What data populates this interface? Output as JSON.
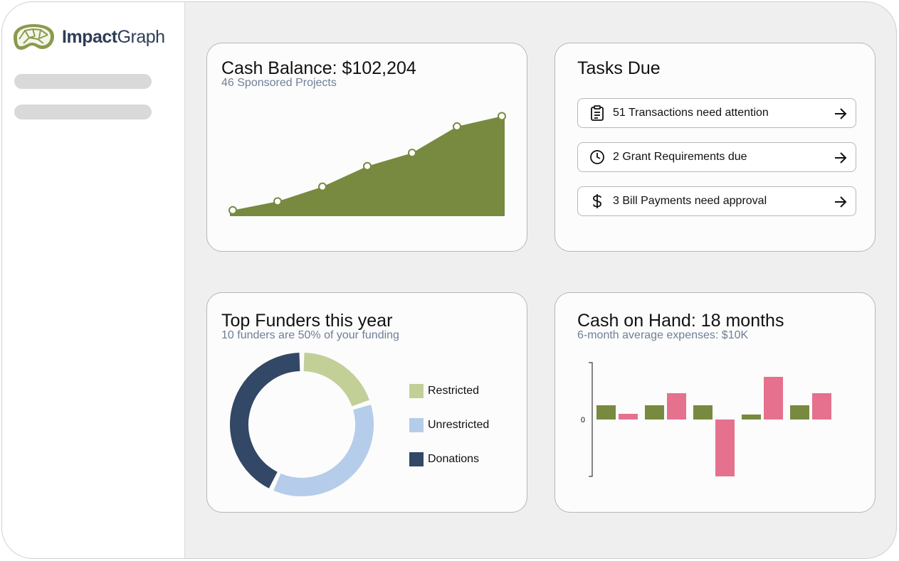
{
  "brand": {
    "name_bold": "Impact",
    "name_regular": "Graph"
  },
  "colors": {
    "accent_green": "#778a40",
    "light_green": "#c2cf97",
    "light_blue": "#b5cdea",
    "navy": "#334766",
    "pink": "#e5718f"
  },
  "cash_balance": {
    "title": "Cash Balance: $102,204",
    "subtitle": "46 Sponsored Projects",
    "chart_data": {
      "type": "area",
      "x": [
        1,
        2,
        3,
        4,
        5,
        6,
        7
      ],
      "values": [
        8,
        20,
        40,
        68,
        86,
        122,
        136
      ],
      "ylim": [
        0,
        150
      ]
    }
  },
  "tasks": {
    "title": "Tasks Due",
    "items": [
      {
        "icon": "clipboard-icon",
        "label": "51 Transactions need attention"
      },
      {
        "icon": "clock-icon",
        "label": "2 Grant Requirements due"
      },
      {
        "icon": "dollar-icon",
        "label": "3 Bill Payments need approval"
      }
    ]
  },
  "top_funders": {
    "title": "Top Funders this year",
    "subtitle": "10 funders are 50% of your funding",
    "chart_data": {
      "type": "pie",
      "categories": [
        "Restricted",
        "Unrestricted",
        "Donations"
      ],
      "values": [
        20,
        37,
        43
      ],
      "colors": [
        "#c2cf97",
        "#b5cdea",
        "#334766"
      ]
    },
    "legend": [
      "Restricted",
      "Unrestricted",
      "Donations"
    ]
  },
  "cash_on_hand": {
    "title": "Cash on Hand: 18 months",
    "subtitle": "6-month average expenses: $10K",
    "chart_data": {
      "type": "bar",
      "categories": [
        "1",
        "2",
        "3",
        "4",
        "5"
      ],
      "series": [
        {
          "values": [
            2,
            2,
            2,
            0.7,
            2
          ],
          "color": "#778a40"
        },
        {
          "values": [
            0.8,
            3.7,
            -8,
            6,
            3.7
          ],
          "color": "#e5718f"
        }
      ],
      "ylim": [
        -8,
        8
      ],
      "ytick_label": "0"
    }
  }
}
